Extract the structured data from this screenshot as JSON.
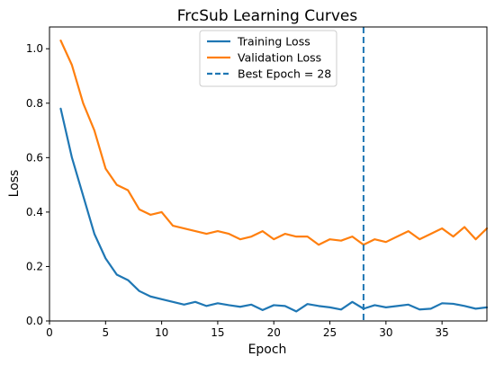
{
  "chart_data": {
    "type": "line",
    "title": "FrcSub Learning Curves",
    "xlabel": "Epoch",
    "ylabel": "Loss",
    "xlim": [
      0,
      39
    ],
    "ylim": [
      0,
      1.08
    ],
    "xticks": [
      0,
      5,
      10,
      15,
      20,
      25,
      30,
      35
    ],
    "yticks": [
      0.0,
      0.2,
      0.4,
      0.6,
      0.8,
      1.0
    ],
    "grid": false,
    "legend_position": "top-center",
    "x": [
      1,
      2,
      3,
      4,
      5,
      6,
      7,
      8,
      9,
      10,
      11,
      12,
      13,
      14,
      15,
      16,
      17,
      18,
      19,
      20,
      21,
      22,
      23,
      24,
      25,
      26,
      27,
      28,
      29,
      30,
      31,
      32,
      33,
      34,
      35,
      36,
      37,
      38,
      39
    ],
    "series": [
      {
        "name": "Training Loss",
        "color": "#1f77b4",
        "values": [
          0.78,
          0.6,
          0.46,
          0.32,
          0.23,
          0.17,
          0.15,
          0.11,
          0.09,
          0.08,
          0.07,
          0.06,
          0.07,
          0.055,
          0.065,
          0.058,
          0.052,
          0.06,
          0.04,
          0.058,
          0.055,
          0.035,
          0.062,
          0.055,
          0.05,
          0.042,
          0.07,
          0.045,
          0.058,
          0.05,
          0.055,
          0.06,
          0.042,
          0.045,
          0.065,
          0.063,
          0.055,
          0.045,
          0.05
        ]
      },
      {
        "name": "Validation Loss",
        "color": "#ff7f0e",
        "values": [
          1.03,
          0.94,
          0.8,
          0.7,
          0.56,
          0.5,
          0.48,
          0.41,
          0.39,
          0.4,
          0.35,
          0.34,
          0.33,
          0.32,
          0.33,
          0.32,
          0.3,
          0.31,
          0.33,
          0.3,
          0.32,
          0.31,
          0.31,
          0.28,
          0.3,
          0.295,
          0.31,
          0.28,
          0.3,
          0.29,
          0.31,
          0.33,
          0.3,
          0.32,
          0.34,
          0.31,
          0.345,
          0.3,
          0.34
        ]
      }
    ],
    "vline": {
      "x": 28,
      "label": "Best Epoch = 28",
      "color": "#1f77b4",
      "style": "dashed"
    }
  }
}
